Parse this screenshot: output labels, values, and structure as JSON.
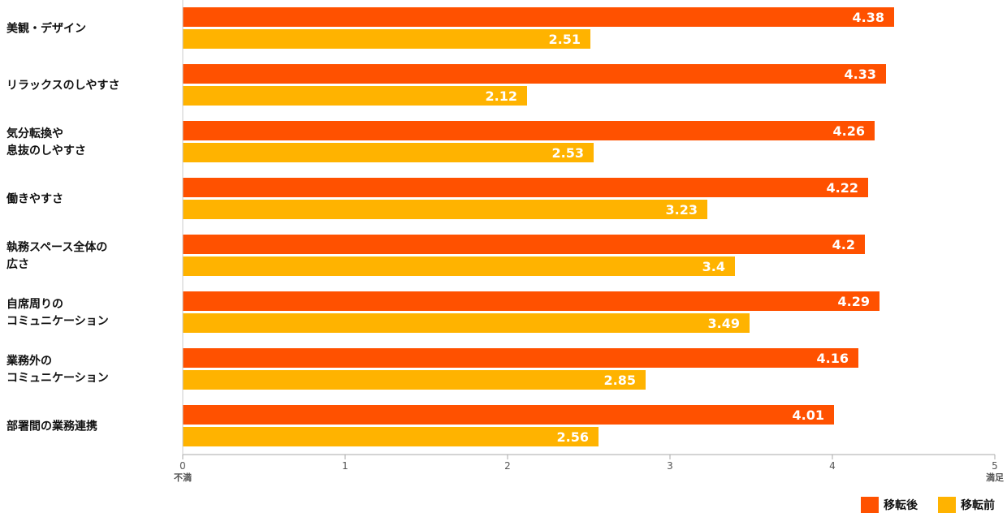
{
  "chart_data": {
    "type": "bar",
    "orientation": "horizontal",
    "categories": [
      [
        "美観・デザイン"
      ],
      [
        "リラックスのしやすさ"
      ],
      [
        "気分転換や",
        "息抜のしやすさ"
      ],
      [
        "働きやすさ"
      ],
      [
        "執務スペース全体の",
        "広さ"
      ],
      [
        "自席周りの",
        "コミュニケーション"
      ],
      [
        "業務外の",
        "コミュニケーション"
      ],
      [
        "部署間の業務連携"
      ]
    ],
    "series": [
      {
        "name": "移転後",
        "color": "#FF5100",
        "values": [
          4.38,
          4.33,
          4.26,
          4.22,
          4.2,
          4.29,
          4.16,
          4.01
        ],
        "labels": [
          "4.38",
          "4.33",
          "4.26",
          "4.22",
          "4.2",
          "4.29",
          "4.16",
          "4.01"
        ]
      },
      {
        "name": "移転前",
        "color": "#FFB300",
        "values": [
          2.51,
          2.12,
          2.53,
          3.23,
          3.4,
          3.49,
          2.85,
          2.56
        ],
        "labels": [
          "2.51",
          "2.12",
          "2.53",
          "3.23",
          "3.4",
          "3.49",
          "2.85",
          "2.56"
        ]
      }
    ],
    "xlim": [
      0,
      5
    ],
    "x_ticks": [
      "0",
      "1",
      "2",
      "3",
      "4",
      "5"
    ],
    "x_min_note": "不満",
    "x_max_note": "満足",
    "grid": false,
    "legend_position": "bottom-right"
  }
}
